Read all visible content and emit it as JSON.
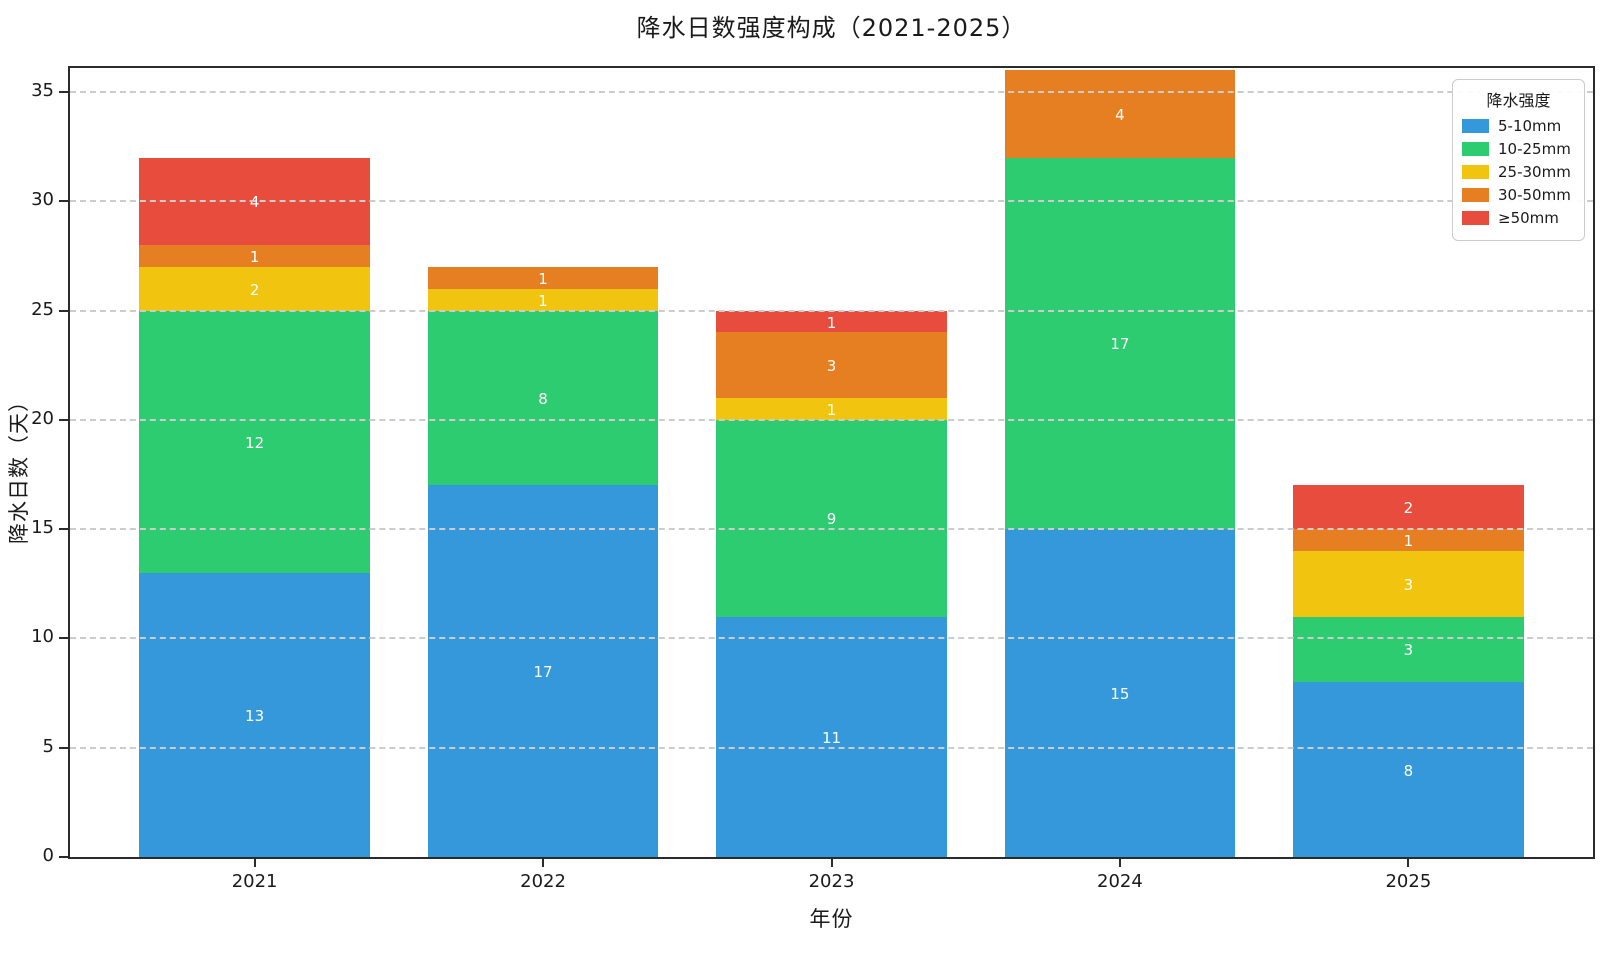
{
  "title": "降水日数强度构成（2021-2025）",
  "axes": {
    "xlabel": "年份",
    "ylabel": "降水日数（天）"
  },
  "legend": {
    "title": "降水强度",
    "position": "upper right"
  },
  "colors": {
    "spine": "#2b2b2b",
    "grid": "#cccccc",
    "segment_label": "#ffffff",
    "text": "#1a1a1a"
  },
  "chart_data": {
    "type": "bar",
    "stacked": true,
    "title": "降水日数强度构成（2021-2025）",
    "xlabel": "年份",
    "ylabel": "降水日数（天）",
    "categories": [
      "2021",
      "2022",
      "2023",
      "2024",
      "2025"
    ],
    "series": [
      {
        "name": "5-10mm",
        "color": "#3498db",
        "values": [
          13,
          17,
          11,
          15,
          8
        ]
      },
      {
        "name": "10-25mm",
        "color": "#2ecc71",
        "values": [
          12,
          8,
          9,
          17,
          3
        ]
      },
      {
        "name": "25-30mm",
        "color": "#f1c40f",
        "values": [
          2,
          1,
          1,
          0,
          3
        ]
      },
      {
        "name": "30-50mm",
        "color": "#e67e22",
        "values": [
          1,
          1,
          3,
          4,
          1
        ]
      },
      {
        "name": "≥50mm",
        "color": "#e74c3c",
        "values": [
          4,
          0,
          1,
          0,
          2
        ]
      }
    ],
    "totals": [
      32,
      27,
      25,
      36,
      17
    ],
    "yticks": [
      0,
      5,
      10,
      15,
      20,
      25,
      30,
      35
    ],
    "ylim": [
      0,
      36.1
    ],
    "xlim": [
      -0.64,
      4.64
    ],
    "bar_width": 0.8,
    "grid": "horizontal dashed",
    "legend_title": "降水强度",
    "legend_position": "upper right",
    "value_labels": "white, centered in each segment"
  }
}
